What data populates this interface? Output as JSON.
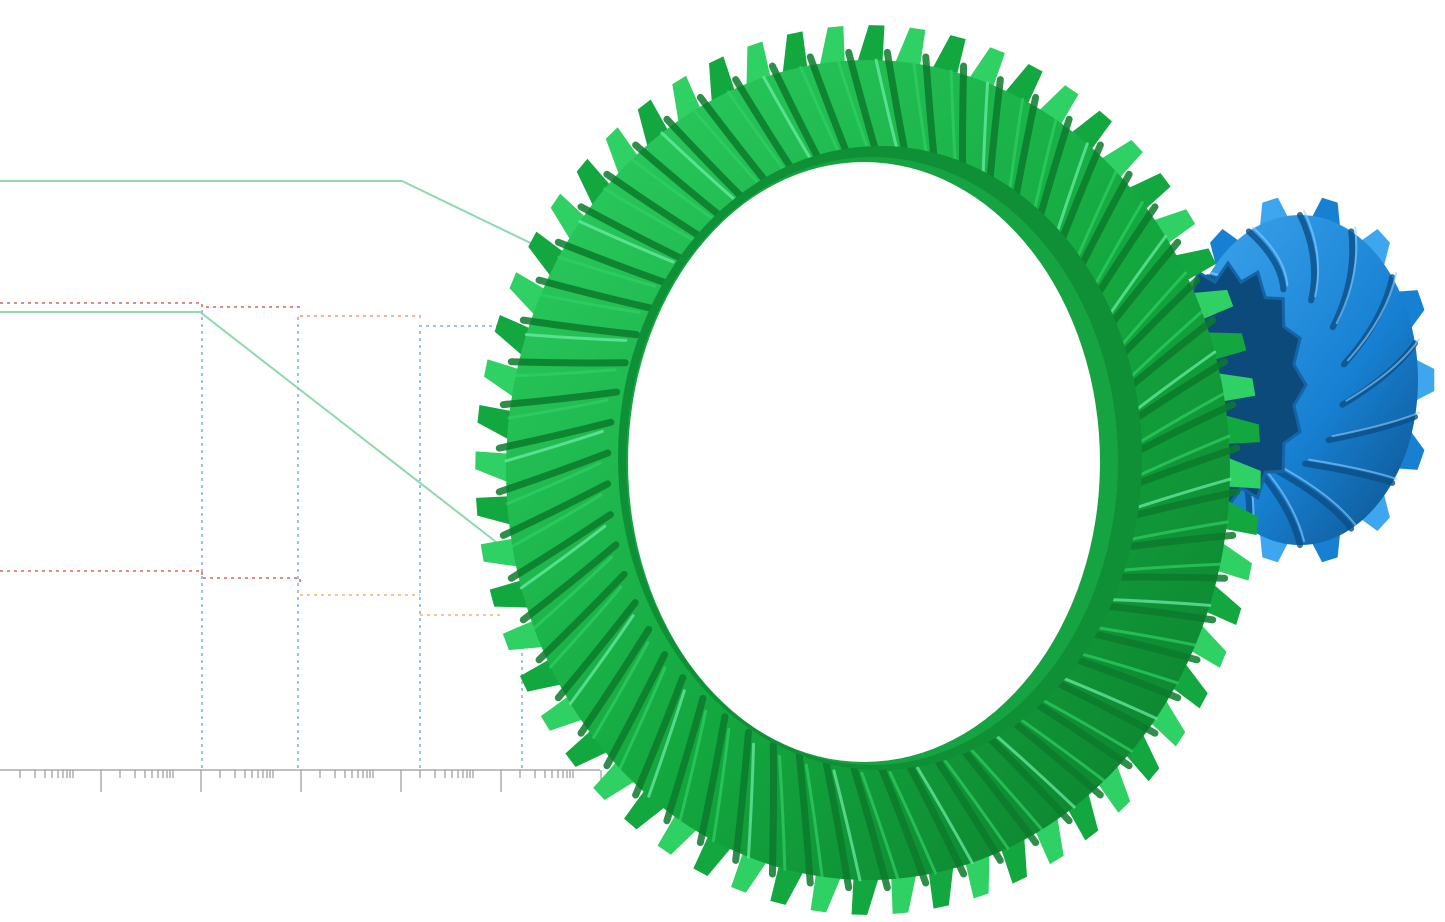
{
  "image": {
    "subject": "spiral-bevel-gear-set",
    "components": [
      "ring-gear",
      "pinion-gear",
      "background-diagram"
    ]
  },
  "ring_gear": {
    "tooth_count": 60,
    "colors": {
      "base": "#13a83f",
      "light": "#2fd064",
      "highlight": "#6ff0a8",
      "dark": "#0c7a2c",
      "bore": "#0f8f36"
    }
  },
  "pinion_gear": {
    "tooth_count": 14,
    "colors": {
      "base": "#1780d2",
      "light": "#3ea6ee",
      "highlight": "#8fd0ff",
      "dark": "#0d4f86",
      "face": "#0c4a7c"
    }
  },
  "background_diagram": {
    "colors": {
      "green_line": "#8fd8b0",
      "blue_dotted": "#9cc4e0",
      "red_dotted": "#e08a80",
      "orange_dotted": "#f0b890",
      "axis": "#999999"
    }
  }
}
